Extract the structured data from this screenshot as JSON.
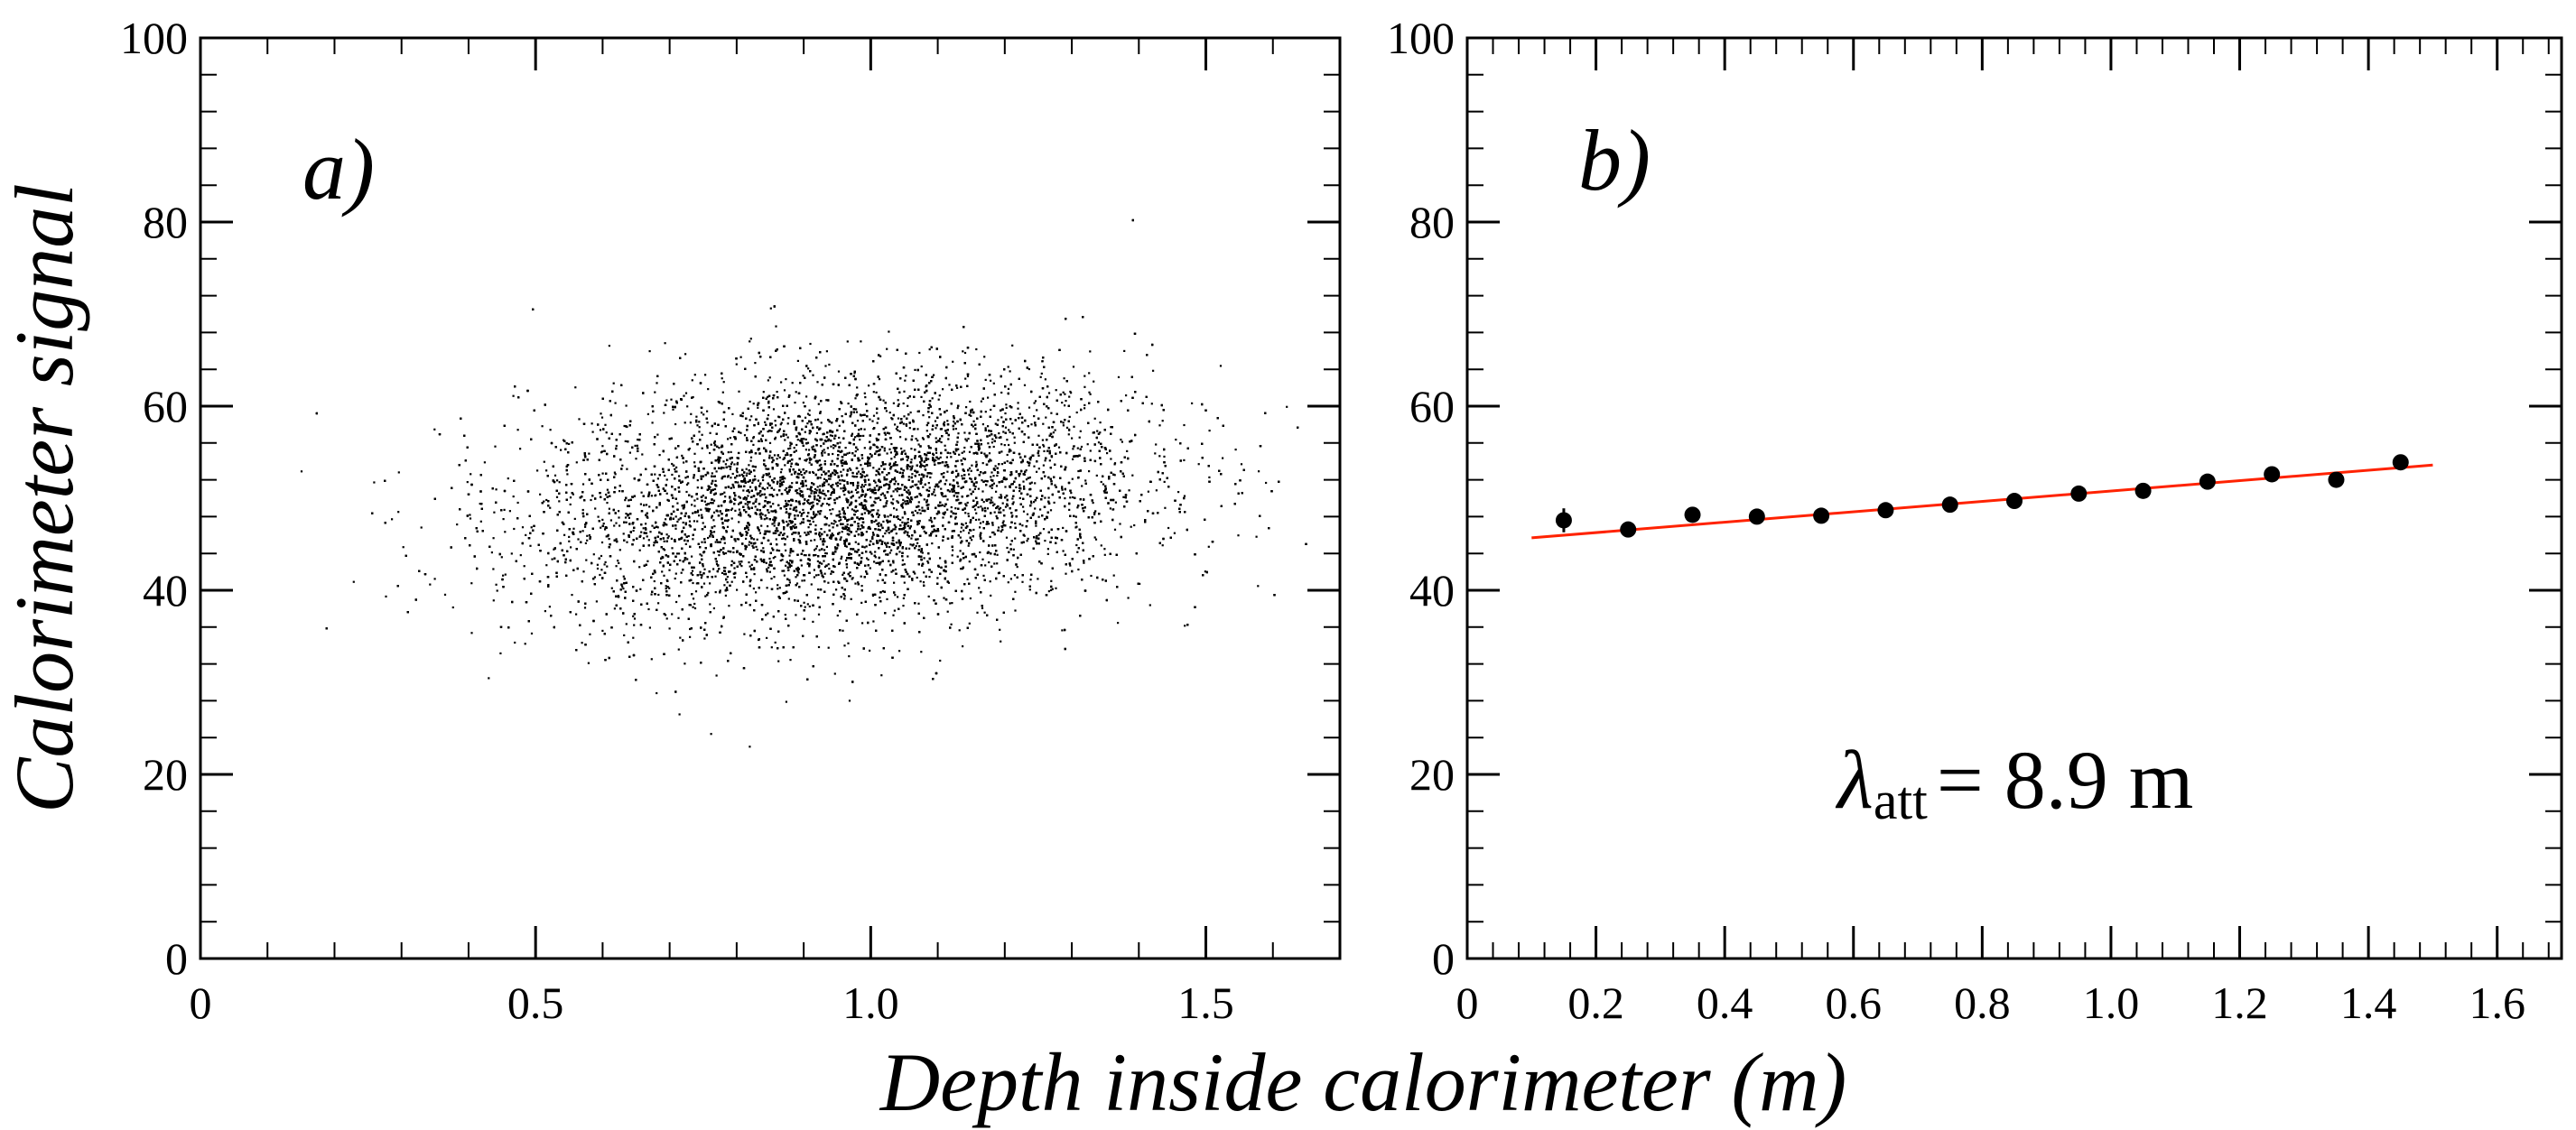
{
  "figure": {
    "xlabel": "Depth inside calorimeter (m)",
    "ylabel": "Calorimeter signal"
  },
  "chart_data": [
    {
      "type": "scatter",
      "panel_label": "a)",
      "xlim": [
        0,
        1.7
      ],
      "ylim": [
        0,
        100
      ],
      "x_ticks": [
        "0",
        "0.5",
        "1.0",
        "1.5"
      ],
      "y_ticks": [
        "0",
        "20",
        "40",
        "60",
        "80",
        "100"
      ],
      "grid": false,
      "point_color": "#000000",
      "density": {
        "n_points": 16000,
        "x_mean": 0.95,
        "x_sd": 0.23,
        "y_mean": 50,
        "y_sd": 6.5,
        "y_slope_per_m": 5.6
      }
    },
    {
      "type": "scatter",
      "panel_label": "b)",
      "xlim": [
        0,
        1.7
      ],
      "ylim": [
        0,
        100
      ],
      "x_ticks": [
        "0",
        "0.2",
        "0.4",
        "0.6",
        "0.8",
        "1.0",
        "1.2",
        "1.4",
        "1.6"
      ],
      "y_ticks": [
        "0",
        "20",
        "40",
        "60",
        "80",
        "100"
      ],
      "grid": false,
      "point_color": "#000000",
      "points": [
        {
          "x": 0.15,
          "y": 47.6,
          "err": 1.3
        },
        {
          "x": 0.25,
          "y": 46.6,
          "err": 0.5
        },
        {
          "x": 0.35,
          "y": 48.2,
          "err": 0.4
        },
        {
          "x": 0.45,
          "y": 48.0,
          "err": 0.3
        },
        {
          "x": 0.55,
          "y": 48.1,
          "err": 0.3
        },
        {
          "x": 0.65,
          "y": 48.7,
          "err": 0.3
        },
        {
          "x": 0.75,
          "y": 49.3,
          "err": 0.3
        },
        {
          "x": 0.85,
          "y": 49.7,
          "err": 0.3
        },
        {
          "x": 0.95,
          "y": 50.5,
          "err": 0.3
        },
        {
          "x": 1.05,
          "y": 50.8,
          "err": 0.3
        },
        {
          "x": 1.15,
          "y": 51.8,
          "err": 0.3
        },
        {
          "x": 1.25,
          "y": 52.6,
          "err": 0.3
        },
        {
          "x": 1.35,
          "y": 52.0,
          "err": 0.4
        },
        {
          "x": 1.45,
          "y": 53.9,
          "err": 0.5
        }
      ],
      "fit": {
        "x": [
          0.1,
          1.5
        ],
        "y": [
          45.7,
          53.6
        ],
        "color": "#ff2200"
      },
      "annotation": {
        "symbol": "λ",
        "subscript": "att",
        "text": "= 8.9 m"
      }
    }
  ]
}
